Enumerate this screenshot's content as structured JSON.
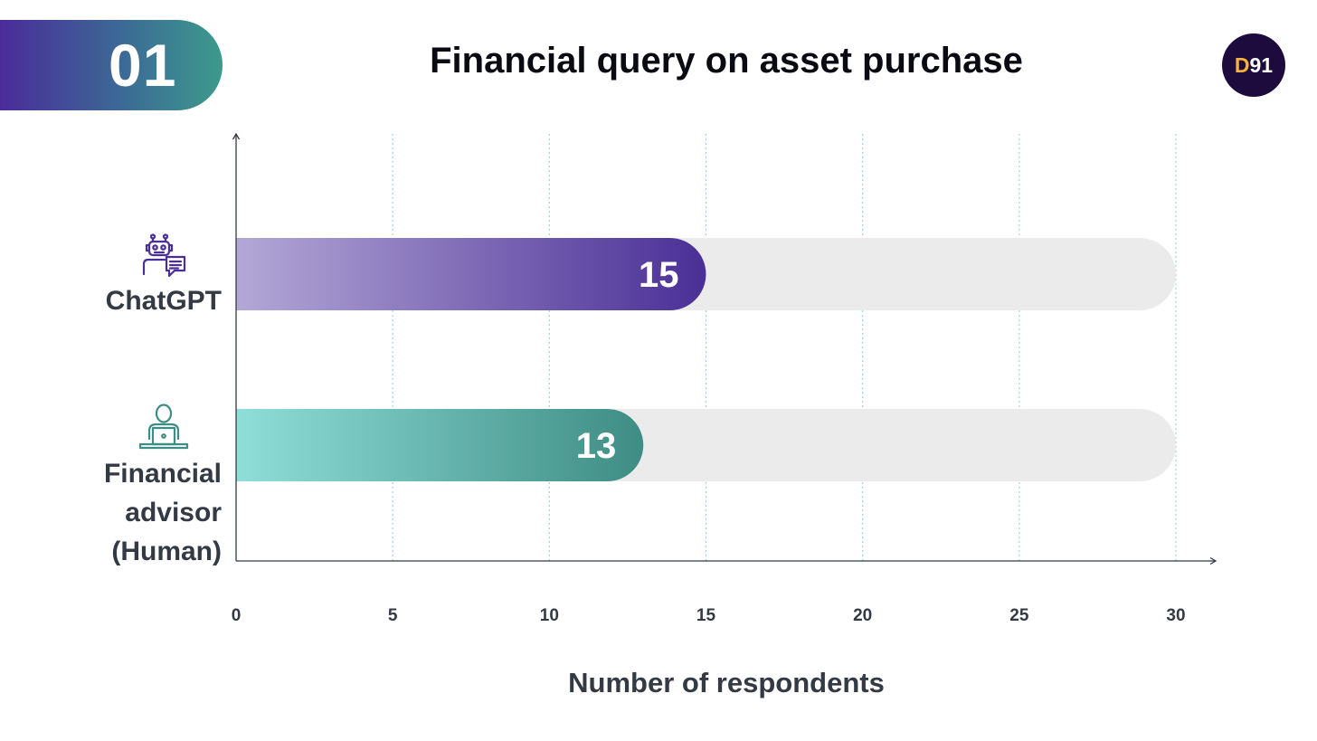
{
  "header": {
    "number": "01",
    "title": "Financial query on asset purchase",
    "logo_part1": "D",
    "logo_part2": "91"
  },
  "chart_data": {
    "type": "bar",
    "orientation": "horizontal",
    "title": "Financial query on asset purchase",
    "categories": [
      "ChatGPT",
      "Financial advisor (Human)"
    ],
    "values": [
      15,
      13
    ],
    "xlabel": "Number of respondents",
    "ylabel": "",
    "xlim": [
      0,
      30
    ],
    "xticks": [
      0,
      5,
      10,
      15,
      20,
      25,
      30
    ],
    "grid": "vertical dotted",
    "bars": [
      {
        "label": "ChatGPT",
        "value": 15,
        "icon": "robot-chat-icon",
        "color_start": "#b3a8d6",
        "color_end": "#4a2f96"
      },
      {
        "label": "Financial advisor (Human)",
        "label_lines": [
          "Financial",
          "advisor",
          "(Human)"
        ],
        "value": 13,
        "icon": "person-laptop-icon",
        "color_start": "#8fded8",
        "color_end": "#3e8d84"
      }
    ],
    "track_color": "#ebebec"
  }
}
